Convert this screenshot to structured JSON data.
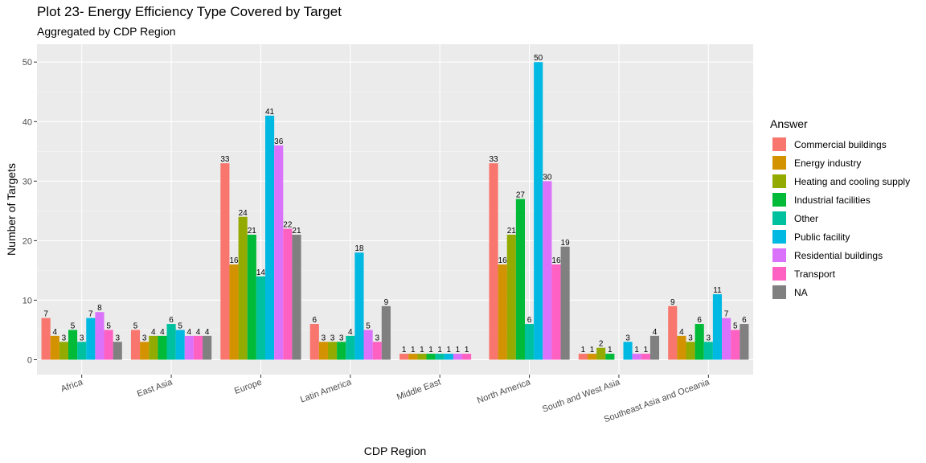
{
  "title": "Plot 23- Energy Efficiency Type Covered by Target",
  "subtitle": "Aggregated by CDP Region",
  "chart_data": {
    "type": "bar",
    "title": "Plot 23- Energy Efficiency Type Covered by Target",
    "subtitle": "Aggregated by CDP Region",
    "xlabel": "CDP Region",
    "ylabel": "Number of Targets",
    "ylim": [
      -2.5,
      53
    ],
    "yticks": [
      0,
      10,
      20,
      30,
      40,
      50
    ],
    "grid": true,
    "legend_position": "right",
    "legend_title": "Answer",
    "categories": [
      "Africa",
      "East Asia",
      "Europe",
      "Latin America",
      "Middle East",
      "North America",
      "South and West Asia",
      "Southeast Asia and Oceania"
    ],
    "series": [
      {
        "name": "Commercial buildings",
        "color": "#F8766D",
        "values": [
          7,
          5,
          33,
          6,
          1,
          33,
          1,
          9
        ]
      },
      {
        "name": "Energy industry",
        "color": "#D39200",
        "values": [
          4,
          3,
          16,
          3,
          1,
          16,
          1,
          4
        ]
      },
      {
        "name": "Heating and cooling supply",
        "color": "#93AA00",
        "values": [
          3,
          4,
          24,
          3,
          1,
          21,
          2,
          3
        ]
      },
      {
        "name": "Industrial facilities",
        "color": "#00BA38",
        "values": [
          5,
          4,
          21,
          3,
          1,
          27,
          1,
          6
        ]
      },
      {
        "name": "Other",
        "color": "#00C19F",
        "values": [
          3,
          6,
          14,
          4,
          1,
          6,
          null,
          3
        ]
      },
      {
        "name": "Public facility",
        "color": "#00B9E3",
        "values": [
          7,
          5,
          41,
          18,
          1,
          50,
          3,
          11
        ]
      },
      {
        "name": "Residential buildings",
        "color": "#DB72FB",
        "values": [
          8,
          4,
          36,
          5,
          1,
          30,
          1,
          7
        ]
      },
      {
        "name": "Transport",
        "color": "#FF61C3",
        "values": [
          5,
          4,
          22,
          3,
          1,
          16,
          1,
          5
        ]
      },
      {
        "name": "NA",
        "color": "#808080",
        "values": [
          3,
          4,
          21,
          9,
          null,
          19,
          4,
          6
        ]
      }
    ]
  },
  "colors": {
    "panel_background": "#EBEBEB",
    "grid_major": "#FFFFFF",
    "axis_text": "#4D4D4D"
  }
}
